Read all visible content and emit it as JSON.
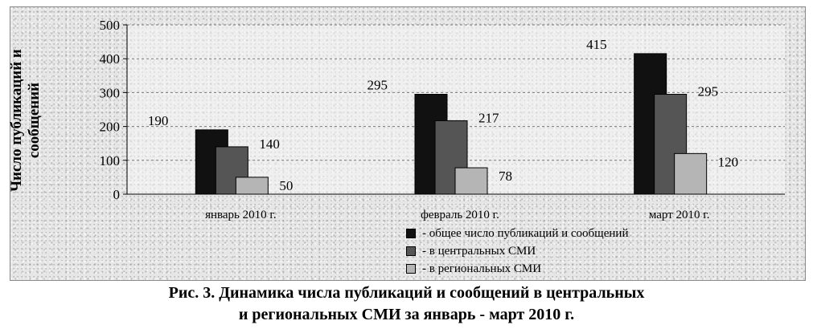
{
  "chart_data": {
    "type": "bar",
    "title": "",
    "ylabel": "Число публикаций и сообщений",
    "xlabel": "",
    "categories": [
      "январь 2010 г.",
      "февраль 2010 г.",
      "март 2010 г."
    ],
    "series": [
      {
        "name": "- общее число публикаций и сообщений",
        "values": [
          190,
          295,
          415
        ],
        "color": "#111111"
      },
      {
        "name": "- в центральных СМИ",
        "values": [
          140,
          217,
          295
        ],
        "color": "#555555"
      },
      {
        "name": "- в региональных СМИ",
        "values": [
          50,
          78,
          120
        ],
        "color": "#b5b5b5"
      }
    ],
    "ylim": [
      0,
      500
    ],
    "yticks": [
      0,
      100,
      200,
      300,
      400,
      500
    ],
    "grid": true,
    "legend_position": "bottom-right"
  },
  "ylabel_lines": [
    "Число публикаций и",
    "сообщений"
  ],
  "caption": {
    "line1": "Рис. 3. Динамика числа публикаций и сообщений в центральных",
    "line2": "и региональных СМИ за январь - март 2010 г."
  }
}
